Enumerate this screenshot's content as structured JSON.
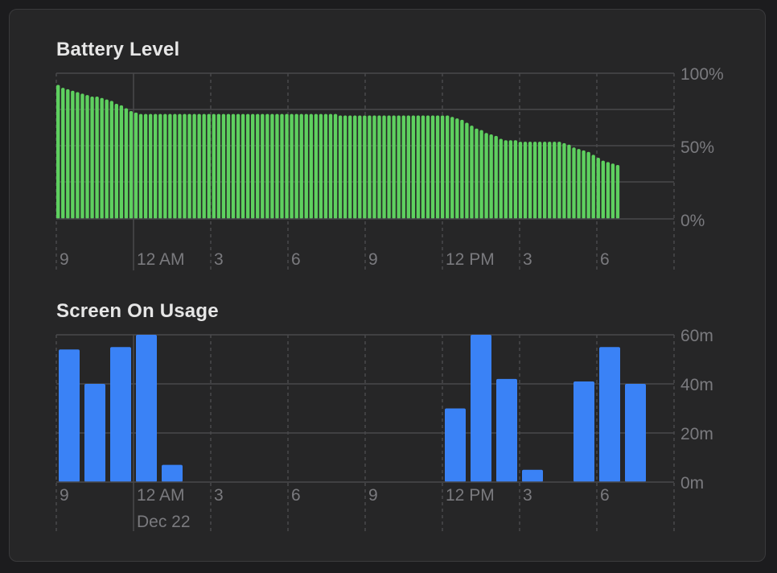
{
  "colors": {
    "battery": "#5ed05f",
    "usage": "#3a82f6",
    "grid": "#48484b",
    "tick_text": "#7a7a7e",
    "title_text": "#e6e6e6"
  },
  "chart_data": [
    {
      "type": "bar",
      "title": "Battery Level",
      "y_tick_labels": [
        "100%",
        "50%",
        "0%"
      ],
      "ylim": [
        0,
        100
      ],
      "x_tick_labels": [
        "9",
        "12 AM",
        "3",
        "6",
        "9",
        "12 PM",
        "3",
        "6"
      ],
      "grid": true,
      "values": [
        92,
        90,
        89,
        88,
        87,
        86,
        85,
        84,
        84,
        83,
        82,
        81,
        79,
        78,
        76,
        74,
        73,
        72,
        72,
        72,
        72,
        72,
        72,
        72,
        72,
        72,
        72,
        72,
        72,
        72,
        72,
        72,
        72,
        72,
        72,
        72,
        72,
        72,
        72,
        72,
        72,
        72,
        72,
        72,
        72,
        72,
        72,
        72,
        72,
        72,
        72,
        72,
        72,
        72,
        72,
        72,
        72,
        72,
        71,
        71,
        71,
        71,
        71,
        71,
        71,
        71,
        71,
        71,
        71,
        71,
        71,
        71,
        71,
        71,
        71,
        71,
        71,
        71,
        71,
        71,
        71,
        70,
        69,
        68,
        66,
        64,
        62,
        61,
        59,
        58,
        57,
        55,
        54,
        54,
        54,
        53,
        53,
        53,
        53,
        53,
        53,
        53,
        53,
        53,
        52,
        51,
        49,
        48,
        47,
        46,
        44,
        42,
        40,
        39,
        38,
        37
      ]
    },
    {
      "type": "bar",
      "title": "Screen On Usage",
      "y_tick_labels": [
        "60m",
        "40m",
        "20m",
        "0m"
      ],
      "ylim": [
        0,
        60
      ],
      "x_tick_labels": [
        "9",
        "12 AM",
        "3",
        "6",
        "9",
        "12 PM",
        "3",
        "6"
      ],
      "date_label": "Dec 22",
      "grid": true,
      "values": [
        54,
        40,
        55,
        60,
        7,
        0,
        0,
        0,
        0,
        0,
        0,
        0,
        0,
        0,
        0,
        30,
        60,
        42,
        5,
        0,
        41,
        55,
        40
      ]
    }
  ]
}
